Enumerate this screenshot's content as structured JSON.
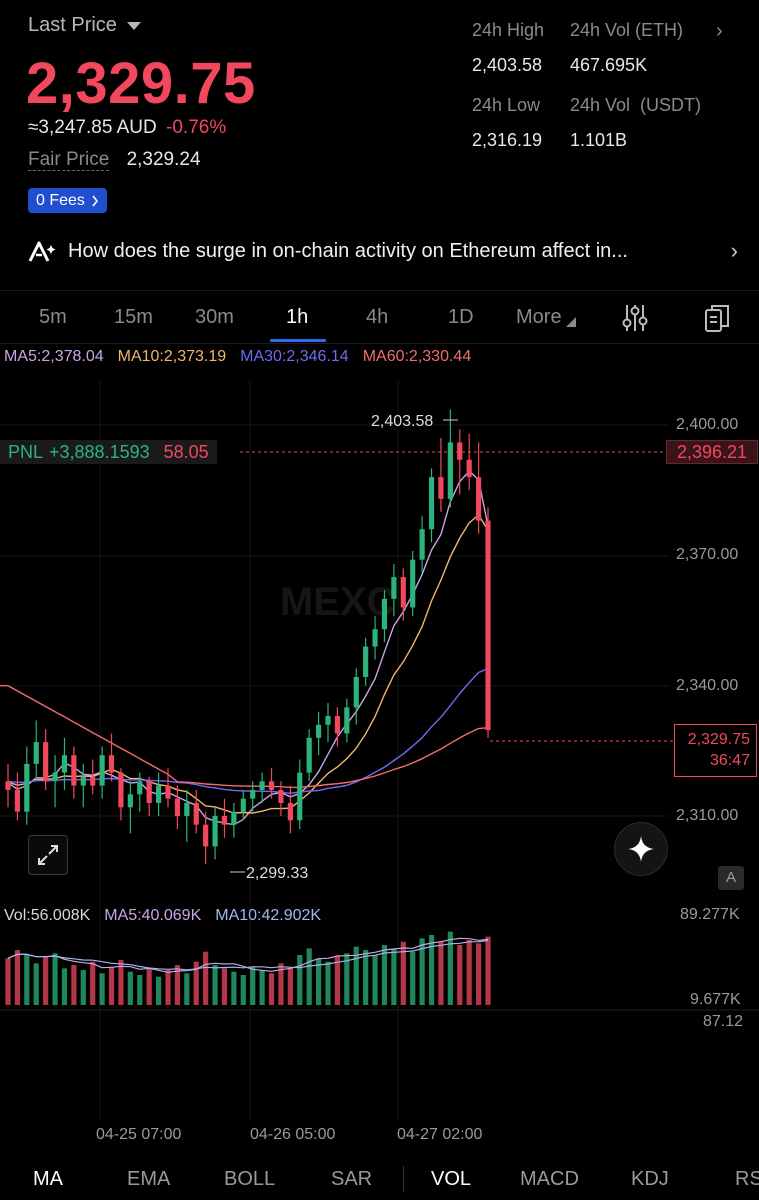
{
  "header": {
    "last_price_label": "Last Price",
    "last_price": "2,329.75",
    "aud_value": "≈3,247.85",
    "aud_unit": "AUD",
    "change_pct": "-0.76%",
    "fair_price_label": "Fair Price",
    "fair_price": "2,329.24",
    "fees_label": "0 Fees"
  },
  "stats": {
    "high_label": "24h High",
    "high_value": "2,403.58",
    "vol_eth_label": "24h Vol (ETH)",
    "vol_eth_value": "467.695K",
    "low_label": "24h Low",
    "low_value": "2,316.19",
    "vol_usdt_label": "24h Vol  (USDT)",
    "vol_usdt_value": "1.101B"
  },
  "news": {
    "text": "How does the surge in on-chain activity on Ethereum affect in..."
  },
  "timeframes": [
    "5m",
    "15m",
    "30m",
    "1h",
    "4h",
    "1D",
    "More"
  ],
  "active_timeframe": "1h",
  "ma_legend": {
    "ma5": "MA5:2,378.04",
    "ma10": "MA10:2,373.19",
    "ma30": "MA30:2,346.14",
    "ma60": "MA60:2,330.44",
    "colors": {
      "ma5": "#c9a6e6",
      "ma10": "#f2b66a",
      "ma30": "#6f6af5",
      "ma60": "#f26d6d"
    }
  },
  "price_axis": [
    "2,400.00",
    "2,370.00",
    "2,340.00",
    "2,310.00"
  ],
  "pnl": {
    "label": "PNL",
    "value": "+3,888.1593",
    "qty": "58.05",
    "line_price": "2,396.21"
  },
  "last_price_box": {
    "price": "2,329.75",
    "countdown": "36:47"
  },
  "high_marker": "2,403.58",
  "low_marker": "2,299.33",
  "watermark": "MEXC",
  "badge": "A",
  "vol_legend": {
    "vol": "Vol:56.008K",
    "ma5": "MA5:40.069K",
    "ma10": "MA10:42.902K"
  },
  "vol_axis": {
    "top": "89.277K",
    "mid": "9.677K",
    "bottom": "87.12"
  },
  "time_axis": [
    "04-25 07:00",
    "04-26 05:00",
    "04-27 02:00"
  ],
  "indicators": [
    "MA",
    "EMA",
    "BOLL",
    "SAR",
    "VOL",
    "MACD",
    "KDJ",
    "RSI"
  ],
  "colors": {
    "up": "#2bb47b",
    "down": "#f2485d",
    "accent": "#2b6cf0"
  },
  "chart_data": {
    "type": "candlestick",
    "symbol_quote": "USDT",
    "interval": "1h",
    "ylim": [
      2295,
      2405
    ],
    "candles": [
      [
        2318,
        2322,
        2312,
        2316
      ],
      [
        2316,
        2320,
        2309,
        2311
      ],
      [
        2311,
        2326,
        2308,
        2322
      ],
      [
        2322,
        2332,
        2318,
        2327
      ],
      [
        2327,
        2330,
        2316,
        2318
      ],
      [
        2318,
        2324,
        2312,
        2320
      ],
      [
        2320,
        2328,
        2316,
        2324
      ],
      [
        2324,
        2326,
        2314,
        2317
      ],
      [
        2317,
        2322,
        2312,
        2319
      ],
      [
        2319,
        2323,
        2315,
        2317
      ],
      [
        2317,
        2326,
        2314,
        2324
      ],
      [
        2324,
        2329,
        2318,
        2320
      ],
      [
        2320,
        2321,
        2309,
        2312
      ],
      [
        2312,
        2318,
        2306,
        2315
      ],
      [
        2315,
        2320,
        2311,
        2318
      ],
      [
        2318,
        2319,
        2310,
        2313
      ],
      [
        2313,
        2320,
        2310,
        2317
      ],
      [
        2317,
        2321,
        2312,
        2314
      ],
      [
        2314,
        2317,
        2307,
        2310
      ],
      [
        2310,
        2316,
        2304,
        2313
      ],
      [
        2313,
        2316,
        2306,
        2308
      ],
      [
        2308,
        2311,
        2299,
        2303
      ],
      [
        2303,
        2312,
        2300,
        2310
      ],
      [
        2310,
        2314,
        2305,
        2308
      ],
      [
        2308,
        2313,
        2305,
        2311
      ],
      [
        2311,
        2316,
        2309,
        2314
      ],
      [
        2314,
        2318,
        2311,
        2316
      ],
      [
        2316,
        2320,
        2313,
        2318
      ],
      [
        2318,
        2321,
        2314,
        2316
      ],
      [
        2316,
        2318,
        2310,
        2313
      ],
      [
        2313,
        2317,
        2306,
        2309
      ],
      [
        2309,
        2323,
        2307,
        2320
      ],
      [
        2320,
        2330,
        2318,
        2328
      ],
      [
        2328,
        2334,
        2324,
        2331
      ],
      [
        2331,
        2336,
        2327,
        2333
      ],
      [
        2333,
        2335,
        2326,
        2329
      ],
      [
        2329,
        2337,
        2327,
        2335
      ],
      [
        2335,
        2344,
        2331,
        2342
      ],
      [
        2342,
        2351,
        2340,
        2349
      ],
      [
        2349,
        2356,
        2346,
        2353
      ],
      [
        2353,
        2362,
        2350,
        2360
      ],
      [
        2360,
        2368,
        2356,
        2365
      ],
      [
        2365,
        2367,
        2355,
        2358
      ],
      [
        2358,
        2371,
        2356,
        2369
      ],
      [
        2369,
        2379,
        2366,
        2376
      ],
      [
        2376,
        2390,
        2373,
        2388
      ],
      [
        2388,
        2397,
        2380,
        2383
      ],
      [
        2383,
        2403.58,
        2381,
        2396
      ],
      [
        2396,
        2399,
        2384,
        2392
      ],
      [
        2392,
        2398,
        2385,
        2388
      ],
      [
        2388,
        2396,
        2375,
        2378
      ],
      [
        2378,
        2381,
        2328,
        2329.75
      ]
    ],
    "volume": [
      28,
      33,
      30,
      25,
      29,
      31,
      22,
      24,
      21,
      26,
      19,
      23,
      27,
      20,
      18,
      22,
      17,
      21,
      24,
      19,
      26,
      32,
      24,
      22,
      20,
      18,
      23,
      21,
      19,
      25,
      22,
      30,
      34,
      28,
      26,
      29,
      31,
      35,
      33,
      30,
      36,
      34,
      38,
      32,
      40,
      42,
      38,
      44,
      36,
      39,
      37,
      41
    ]
  }
}
